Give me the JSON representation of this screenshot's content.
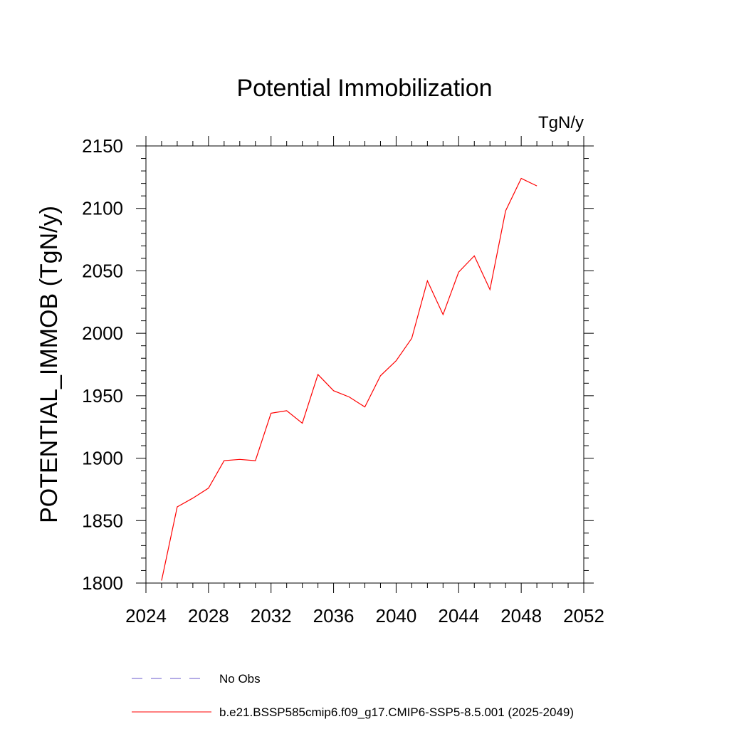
{
  "chart_data": {
    "type": "line",
    "title": "Potential Immobilization",
    "units_label": "TgN/y",
    "xlabel": "",
    "ylabel": "POTENTIAL_IMMOB  (TgN/y)",
    "xlim": [
      2024,
      2052
    ],
    "ylim": [
      1800,
      2150
    ],
    "xticks": [
      "2024",
      "2028",
      "2032",
      "2036",
      "2040",
      "2044",
      "2048",
      "2052"
    ],
    "yticks": [
      "1800",
      "1850",
      "1900",
      "1950",
      "2000",
      "2050",
      "2100",
      "2150"
    ],
    "grid": false,
    "series": [
      {
        "name": "b.e21.BSSP585cmip6.f09_g17.CMIP6-SSP5-8.5.001 (2025-2049)",
        "color": "#ff0000",
        "style": "solid",
        "x": [
          2025,
          2026,
          2027,
          2028,
          2029,
          2030,
          2031,
          2032,
          2033,
          2034,
          2035,
          2036,
          2037,
          2038,
          2039,
          2040,
          2041,
          2042,
          2043,
          2044,
          2045,
          2046,
          2047,
          2048,
          2049
        ],
        "values": [
          1802,
          1861,
          1868,
          1876,
          1898,
          1899,
          1898,
          1936,
          1938,
          1928,
          1967,
          1954,
          1949,
          1941,
          1966,
          1978,
          1996,
          2042,
          2015,
          2049,
          2062,
          2035,
          2098,
          2124,
          2118
        ]
      }
    ],
    "legend": [
      {
        "label": "No Obs",
        "color": "#6a5acd",
        "style": "dashed"
      },
      {
        "label": "b.e21.BSSP585cmip6.f09_g17.CMIP6-SSP5-8.5.001 (2025-2049)",
        "color": "#ff0000",
        "style": "solid"
      }
    ],
    "legend_position": "bottom"
  }
}
